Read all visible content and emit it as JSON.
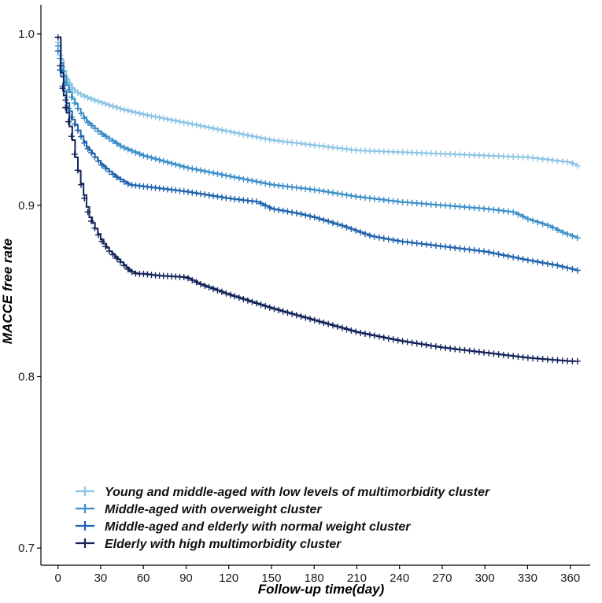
{
  "chart_data": {
    "type": "line",
    "title": "",
    "xlabel": "Follow-up time(day)",
    "ylabel": "MACCE free rate",
    "xlim": [
      -12,
      374
    ],
    "ylim": [
      0.69,
      1.017
    ],
    "xticks": [
      0,
      30,
      60,
      90,
      120,
      150,
      180,
      210,
      240,
      270,
      300,
      330,
      360
    ],
    "yticks": [
      0.7,
      0.8,
      0.9,
      1.0
    ],
    "ytick_labels": [
      "0.7",
      "0.8",
      "0.9",
      "1.0"
    ],
    "grid": false,
    "legend_position": "bottom-left",
    "series": [
      {
        "name": "Young and middle-aged with low levels of multimorbidity cluster",
        "color": "#8cc4e4",
        "x": [
          0,
          2,
          5,
          10,
          15,
          20,
          30,
          45,
          60,
          90,
          120,
          150,
          180,
          210,
          240,
          270,
          300,
          330,
          350,
          360,
          365
        ],
        "y": [
          0.995,
          0.985,
          0.975,
          0.968,
          0.965,
          0.963,
          0.96,
          0.956,
          0.953,
          0.948,
          0.943,
          0.938,
          0.935,
          0.932,
          0.931,
          0.93,
          0.929,
          0.928,
          0.926,
          0.925,
          0.923
        ]
      },
      {
        "name": "Middle-aged with overweight cluster",
        "color": "#3b8fc9",
        "x": [
          0,
          2,
          5,
          10,
          15,
          20,
          30,
          45,
          60,
          90,
          120,
          150,
          180,
          210,
          240,
          270,
          300,
          320,
          330,
          345,
          355,
          365
        ],
        "y": [
          0.993,
          0.983,
          0.972,
          0.962,
          0.955,
          0.949,
          0.942,
          0.934,
          0.929,
          0.922,
          0.917,
          0.912,
          0.909,
          0.905,
          0.902,
          0.9,
          0.898,
          0.896,
          0.892,
          0.888,
          0.884,
          0.881
        ]
      },
      {
        "name": "Middle-aged and elderly with normal weight cluster",
        "color": "#1e63ad",
        "x": [
          0,
          2,
          5,
          10,
          15,
          20,
          30,
          40,
          50,
          60,
          90,
          120,
          140,
          150,
          170,
          180,
          200,
          220,
          240,
          270,
          300,
          330,
          350,
          365
        ],
        "y": [
          0.99,
          0.975,
          0.962,
          0.95,
          0.942,
          0.934,
          0.924,
          0.917,
          0.912,
          0.911,
          0.908,
          0.904,
          0.902,
          0.898,
          0.895,
          0.893,
          0.888,
          0.882,
          0.879,
          0.876,
          0.873,
          0.868,
          0.865,
          0.862
        ]
      },
      {
        "name": "Elderly with high multimorbidity cluster",
        "color": "#13235a",
        "x": [
          0,
          1,
          3,
          5,
          8,
          10,
          12,
          15,
          18,
          20,
          22,
          25,
          30,
          35,
          40,
          45,
          50,
          55,
          60,
          70,
          90,
          100,
          120,
          150,
          180,
          210,
          240,
          270,
          300,
          330,
          360,
          365
        ],
        "y": [
          0.998,
          0.985,
          0.97,
          0.958,
          0.946,
          0.938,
          0.928,
          0.916,
          0.906,
          0.899,
          0.893,
          0.888,
          0.88,
          0.874,
          0.87,
          0.866,
          0.862,
          0.86,
          0.86,
          0.859,
          0.858,
          0.854,
          0.848,
          0.84,
          0.833,
          0.826,
          0.821,
          0.817,
          0.814,
          0.811,
          0.809,
          0.809
        ]
      }
    ]
  }
}
